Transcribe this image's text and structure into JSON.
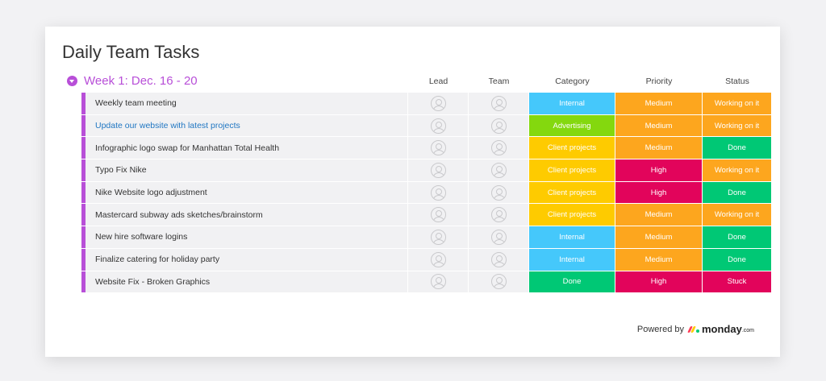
{
  "title": "Daily Team Tasks",
  "group": {
    "label": "Week 1: Dec. 16 - 20",
    "color": "#b84fd8"
  },
  "columns": {
    "lead": "Lead",
    "team": "Team",
    "category": "Category",
    "priority": "Priority",
    "status": "Status"
  },
  "colors": {
    "Internal": "#45c8fb",
    "Advertising": "#84d80e",
    "Client projects": "#fecb00",
    "Done": "#00c875",
    "Medium": "#fda61e",
    "High": "#e2045b",
    "Working on it": "#fda61e",
    "Stuck": "#e2045b"
  },
  "rows": [
    {
      "name": "Weekly team meeting",
      "category": "Internal",
      "priority": "Medium",
      "status": "Working on it"
    },
    {
      "name": "Update our website with latest projects",
      "link": true,
      "category": "Advertising",
      "priority": "Medium",
      "status": "Working on it"
    },
    {
      "name": "Infographic logo swap for Manhattan Total Health",
      "category": "Client projects",
      "priority": "Medium",
      "status": "Done"
    },
    {
      "name": "Typo Fix Nike",
      "category": "Client projects",
      "priority": "High",
      "status": "Working on it"
    },
    {
      "name": "Nike Website logo adjustment",
      "category": "Client projects",
      "priority": "High",
      "status": "Done"
    },
    {
      "name": "Mastercard subway ads sketches/brainstorm",
      "category": "Client projects",
      "priority": "Medium",
      "status": "Working on it"
    },
    {
      "name": "New hire software logins",
      "category": "Internal",
      "priority": "Medium",
      "status": "Done"
    },
    {
      "name": "Finalize catering for holiday party",
      "category": "Internal",
      "priority": "Medium",
      "status": "Done"
    },
    {
      "name": "Website Fix - Broken Graphics",
      "category": "Done",
      "priority": "High",
      "status": "Stuck"
    }
  ],
  "footer": {
    "powered": "Powered by",
    "brand": "monday",
    "suffix": ".com"
  }
}
